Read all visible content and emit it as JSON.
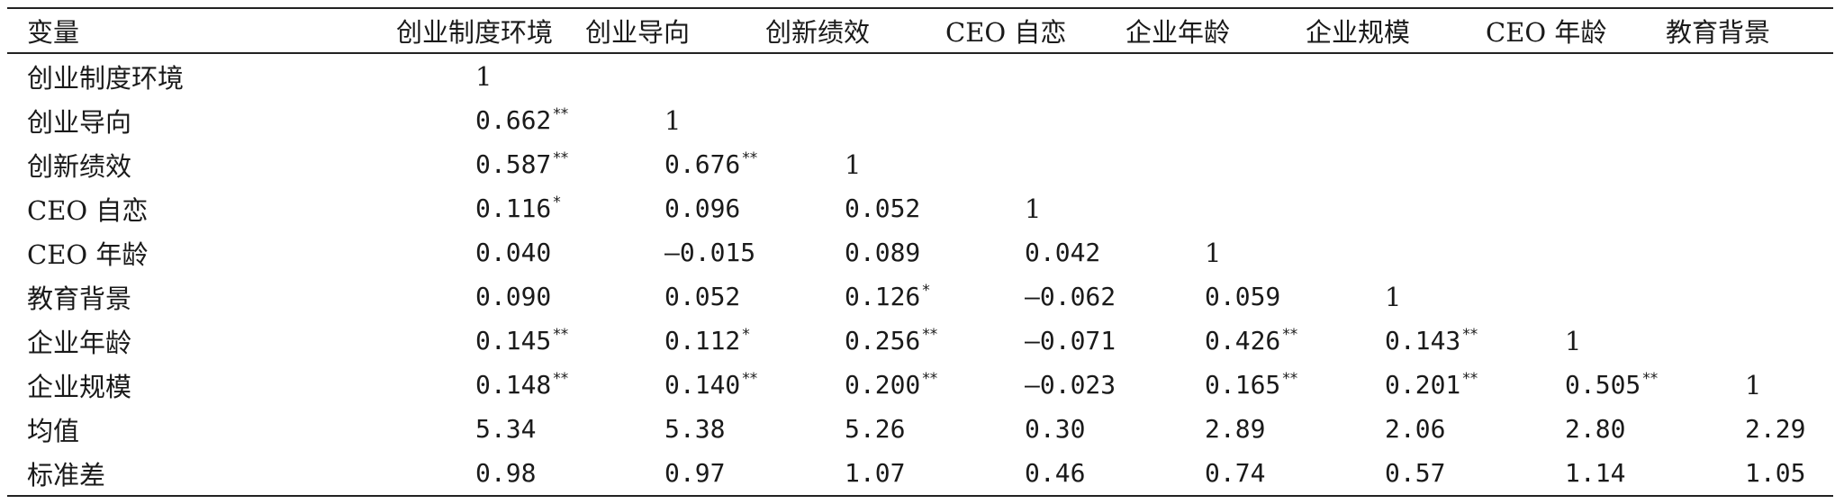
{
  "table": {
    "corner_label": "变量",
    "columns": [
      "创业制度环境",
      "创业导向",
      "创新绩效",
      "CEO 自恋",
      "企业年龄",
      "企业规模",
      "CEO 年龄",
      "教育背景"
    ],
    "rows": [
      {
        "label": "创业制度环境",
        "cells": [
          {
            "v": "1",
            "sig": ""
          }
        ]
      },
      {
        "label": "创业导向",
        "cells": [
          {
            "v": "0.662",
            "sig": "**"
          },
          {
            "v": "1",
            "sig": ""
          }
        ]
      },
      {
        "label": "创新绩效",
        "cells": [
          {
            "v": "0.587",
            "sig": "**"
          },
          {
            "v": "0.676",
            "sig": "**"
          },
          {
            "v": "1",
            "sig": ""
          }
        ]
      },
      {
        "label": "CEO 自恋",
        "cells": [
          {
            "v": "0.116",
            "sig": "*"
          },
          {
            "v": "0.096",
            "sig": ""
          },
          {
            "v": "0.052",
            "sig": ""
          },
          {
            "v": "1",
            "sig": ""
          }
        ]
      },
      {
        "label": "CEO 年龄",
        "cells": [
          {
            "v": "0.040",
            "sig": ""
          },
          {
            "v": "—0.015",
            "sig": ""
          },
          {
            "v": "0.089",
            "sig": ""
          },
          {
            "v": "0.042",
            "sig": ""
          },
          {
            "v": "1",
            "sig": ""
          }
        ]
      },
      {
        "label": "教育背景",
        "cells": [
          {
            "v": "0.090",
            "sig": ""
          },
          {
            "v": "0.052",
            "sig": ""
          },
          {
            "v": "0.126",
            "sig": "*"
          },
          {
            "v": "—0.062",
            "sig": ""
          },
          {
            "v": "0.059",
            "sig": ""
          },
          {
            "v": "1",
            "sig": ""
          }
        ]
      },
      {
        "label": "企业年龄",
        "cells": [
          {
            "v": "0.145",
            "sig": "**"
          },
          {
            "v": "0.112",
            "sig": "*"
          },
          {
            "v": "0.256",
            "sig": "**"
          },
          {
            "v": "—0.071",
            "sig": ""
          },
          {
            "v": "0.426",
            "sig": "**"
          },
          {
            "v": "0.143",
            "sig": "**"
          },
          {
            "v": "1",
            "sig": ""
          }
        ]
      },
      {
        "label": "企业规模",
        "cells": [
          {
            "v": "0.148",
            "sig": "**"
          },
          {
            "v": "0.140",
            "sig": "**"
          },
          {
            "v": "0.200",
            "sig": "**"
          },
          {
            "v": "—0.023",
            "sig": ""
          },
          {
            "v": "0.165",
            "sig": "**"
          },
          {
            "v": "0.201",
            "sig": "**"
          },
          {
            "v": "0.505",
            "sig": "**"
          },
          {
            "v": "1",
            "sig": ""
          }
        ]
      },
      {
        "label": "均值",
        "cells": [
          {
            "v": "5.34",
            "sig": ""
          },
          {
            "v": "5.38",
            "sig": ""
          },
          {
            "v": "5.26",
            "sig": ""
          },
          {
            "v": "0.30",
            "sig": ""
          },
          {
            "v": "2.89",
            "sig": ""
          },
          {
            "v": "2.06",
            "sig": ""
          },
          {
            "v": "2.80",
            "sig": ""
          },
          {
            "v": "2.29",
            "sig": ""
          }
        ]
      },
      {
        "label": "标准差",
        "cells": [
          {
            "v": "0.98",
            "sig": ""
          },
          {
            "v": "0.97",
            "sig": ""
          },
          {
            "v": "1.07",
            "sig": ""
          },
          {
            "v": "0.46",
            "sig": ""
          },
          {
            "v": "0.74",
            "sig": ""
          },
          {
            "v": "0.57",
            "sig": ""
          },
          {
            "v": "1.14",
            "sig": ""
          },
          {
            "v": "1.05",
            "sig": ""
          }
        ]
      }
    ]
  }
}
